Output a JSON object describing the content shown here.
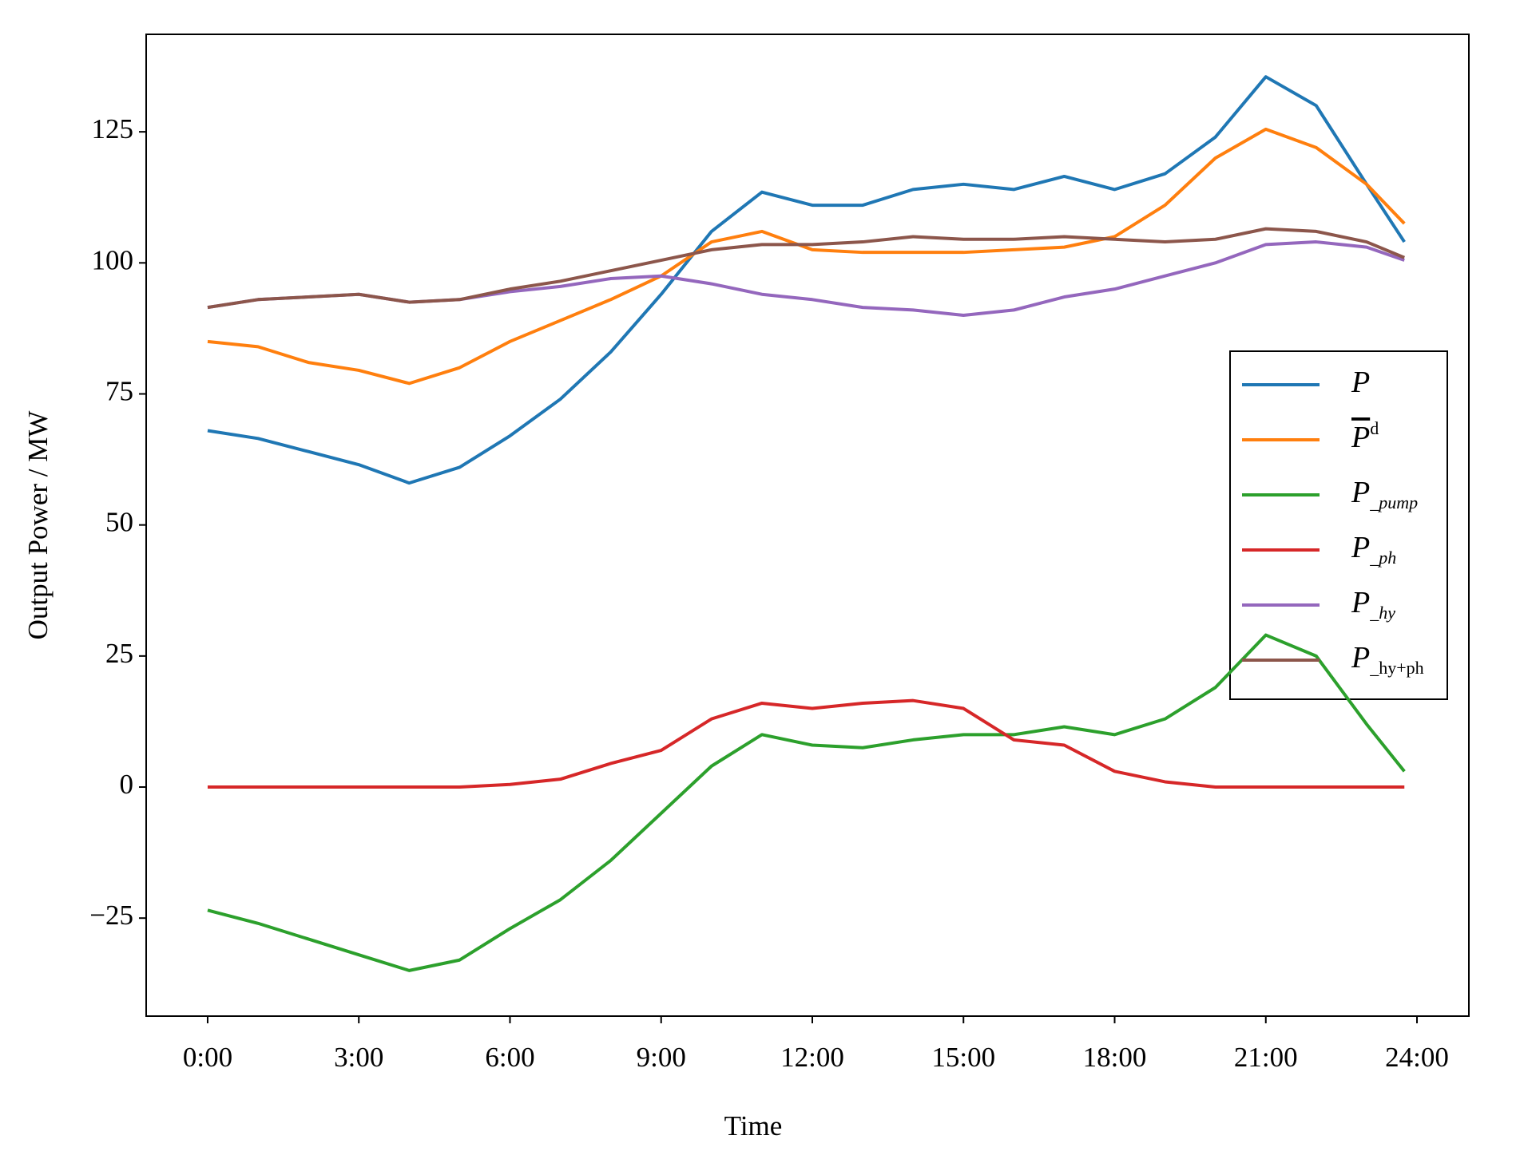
{
  "chart_data": {
    "type": "line",
    "xlabel": "Time",
    "ylabel": "Output Power / MW",
    "x": [
      0,
      1,
      2,
      3,
      4,
      5,
      6,
      7,
      8,
      9,
      10,
      11,
      12,
      13,
      14,
      15,
      16,
      17,
      18,
      19,
      20,
      21,
      22,
      23,
      23.75
    ],
    "xlim": [
      -1.22,
      25.03
    ],
    "xticks": [
      {
        "value": 0,
        "label": "0:00"
      },
      {
        "value": 3,
        "label": "3:00"
      },
      {
        "value": 6,
        "label": "6:00"
      },
      {
        "value": 9,
        "label": "9:00"
      },
      {
        "value": 12,
        "label": "12:00"
      },
      {
        "value": 15,
        "label": "15:00"
      },
      {
        "value": 18,
        "label": "18:00"
      },
      {
        "value": 21,
        "label": "21:00"
      },
      {
        "value": 24,
        "label": "24:00"
      }
    ],
    "ylim": [
      -43.7,
      143.6
    ],
    "yticks": [
      {
        "value": -25,
        "label": "−25"
      },
      0,
      25,
      50,
      75,
      100,
      125
    ],
    "legend": "center right",
    "series": [
      {
        "name": "P",
        "color": "#1f77b4",
        "values": [
          68,
          66.5,
          64,
          61.5,
          58,
          61,
          67,
          74,
          83,
          94,
          106,
          113.5,
          111,
          111,
          114,
          115,
          114,
          116.5,
          114,
          117,
          124,
          135.5,
          130,
          115,
          104
        ]
      },
      {
        "name": "Pd",
        "color": "#ff7f0e",
        "values": [
          85,
          84,
          81,
          79.5,
          77,
          80,
          85,
          89,
          93,
          97.5,
          104,
          106,
          102.5,
          102,
          102,
          102,
          102.5,
          103,
          105,
          111,
          120,
          125.5,
          122,
          115,
          107.5
        ]
      },
      {
        "name": "P_pump",
        "color": "#2ca02c",
        "values": [
          -23.5,
          -26,
          -29,
          -32,
          -35,
          -33,
          -27,
          -21.5,
          -14,
          -5,
          4,
          10,
          8,
          7.5,
          9,
          10,
          10,
          11.5,
          10,
          13,
          19,
          29,
          25,
          12,
          3
        ]
      },
      {
        "name": "P_ph",
        "color": "#d62728",
        "values": [
          0,
          0,
          0,
          0,
          0,
          0,
          0.5,
          1.5,
          4.5,
          7,
          13,
          16,
          15,
          16,
          16.5,
          15,
          9,
          8,
          3,
          1,
          0,
          0,
          0,
          0,
          0
        ]
      },
      {
        "name": "P_hy",
        "color": "#9467bd",
        "values": [
          91.5,
          93,
          93.5,
          94,
          92.5,
          93,
          94.5,
          95.5,
          97,
          97.5,
          96,
          94,
          93,
          91.5,
          91,
          90,
          91,
          93.5,
          95,
          97.5,
          100,
          103.5,
          104,
          103,
          100.5
        ]
      },
      {
        "name": "P_hy+ph",
        "color": "#8c564b",
        "values": [
          91.5,
          93,
          93.5,
          94,
          92.5,
          93,
          95,
          96.5,
          98.5,
          100.5,
          102.5,
          103.5,
          103.5,
          104,
          105,
          104.5,
          104.5,
          105,
          104.5,
          104,
          104.5,
          106.5,
          106,
          104,
          101
        ]
      }
    ]
  }
}
